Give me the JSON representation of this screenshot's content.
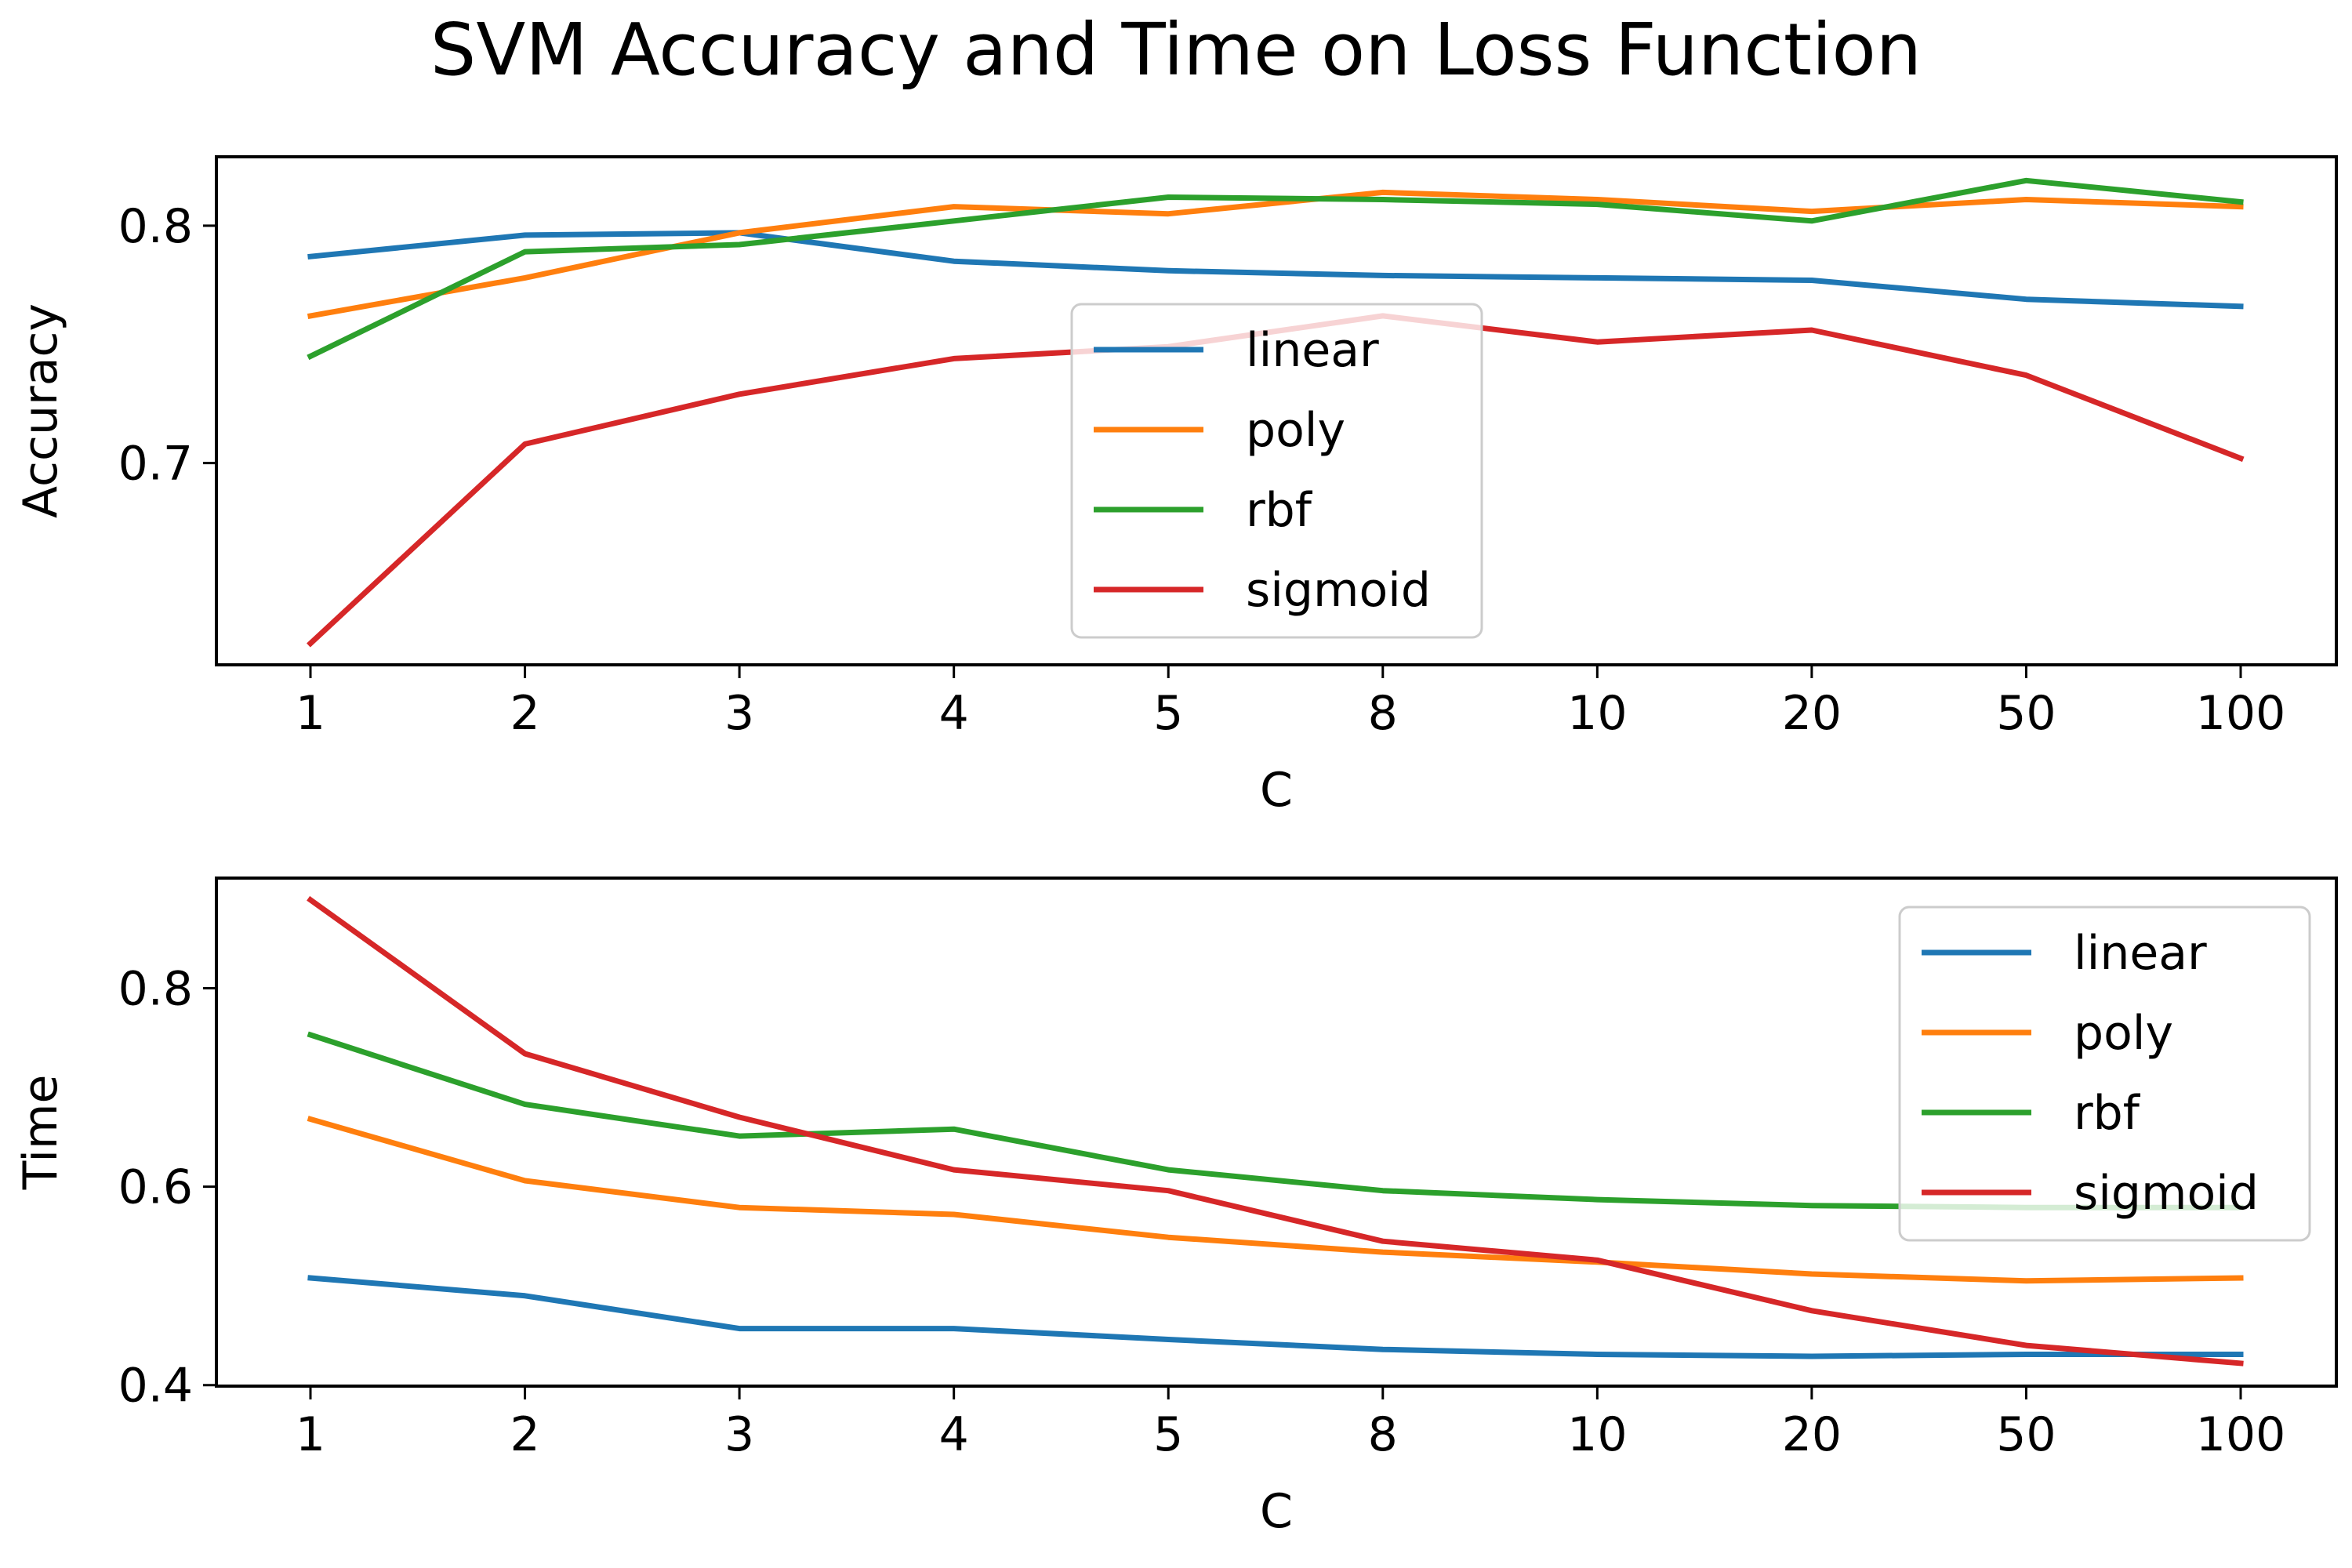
{
  "figure": {
    "title": "SVM Accuracy and Time on Loss Function"
  },
  "colors": {
    "linear": "#1f77b4",
    "poly": "#ff7f0e",
    "rbf": "#2ca02c",
    "sigmoid": "#d62728"
  },
  "chart_data": [
    {
      "type": "line",
      "title": "",
      "xlabel": "C",
      "ylabel": "Accuracy",
      "categories": [
        "1",
        "2",
        "3",
        "4",
        "5",
        "8",
        "10",
        "20",
        "50",
        "100"
      ],
      "ylim": [
        0.615,
        0.829
      ],
      "yticks": [
        "0.7",
        "0.8"
      ],
      "legend": "center",
      "grid": false,
      "series": [
        {
          "name": "linear",
          "color": "#1f77b4",
          "values": [
            0.787,
            0.796,
            0.797,
            0.785,
            0.781,
            0.779,
            0.778,
            0.777,
            0.769,
            0.766
          ]
        },
        {
          "name": "poly",
          "color": "#ff7f0e",
          "values": [
            0.762,
            0.778,
            0.797,
            0.808,
            0.805,
            0.814,
            0.811,
            0.806,
            0.811,
            0.808
          ]
        },
        {
          "name": "rbf",
          "color": "#2ca02c",
          "values": [
            0.745,
            0.789,
            0.792,
            0.802,
            0.812,
            0.811,
            0.809,
            0.802,
            0.819,
            0.81
          ]
        },
        {
          "name": "sigmoid",
          "color": "#d62728",
          "values": [
            0.624,
            0.708,
            0.729,
            0.744,
            0.749,
            0.762,
            0.751,
            0.756,
            0.737,
            0.702
          ]
        }
      ]
    },
    {
      "type": "line",
      "title": "",
      "xlabel": "C",
      "ylabel": "Time",
      "categories": [
        "1",
        "2",
        "3",
        "4",
        "5",
        "8",
        "10",
        "20",
        "50",
        "100"
      ],
      "ylim": [
        0.399,
        0.911
      ],
      "yticks": [
        "0.4",
        "0.6",
        "0.8"
      ],
      "legend": "upper right",
      "grid": false,
      "series": [
        {
          "name": "linear",
          "color": "#1f77b4",
          "values": [
            0.508,
            0.49,
            0.457,
            0.457,
            0.446,
            0.436,
            0.431,
            0.429,
            0.431,
            0.431
          ]
        },
        {
          "name": "poly",
          "color": "#ff7f0e",
          "values": [
            0.668,
            0.606,
            0.579,
            0.572,
            0.549,
            0.534,
            0.524,
            0.512,
            0.505,
            0.508
          ]
        },
        {
          "name": "rbf",
          "color": "#2ca02c",
          "values": [
            0.753,
            0.683,
            0.651,
            0.658,
            0.617,
            0.596,
            0.587,
            0.581,
            0.579,
            0.579
          ]
        },
        {
          "name": "sigmoid",
          "color": "#d62728",
          "values": [
            0.889,
            0.734,
            0.67,
            0.617,
            0.596,
            0.545,
            0.526,
            0.475,
            0.44,
            0.422
          ]
        }
      ]
    }
  ]
}
